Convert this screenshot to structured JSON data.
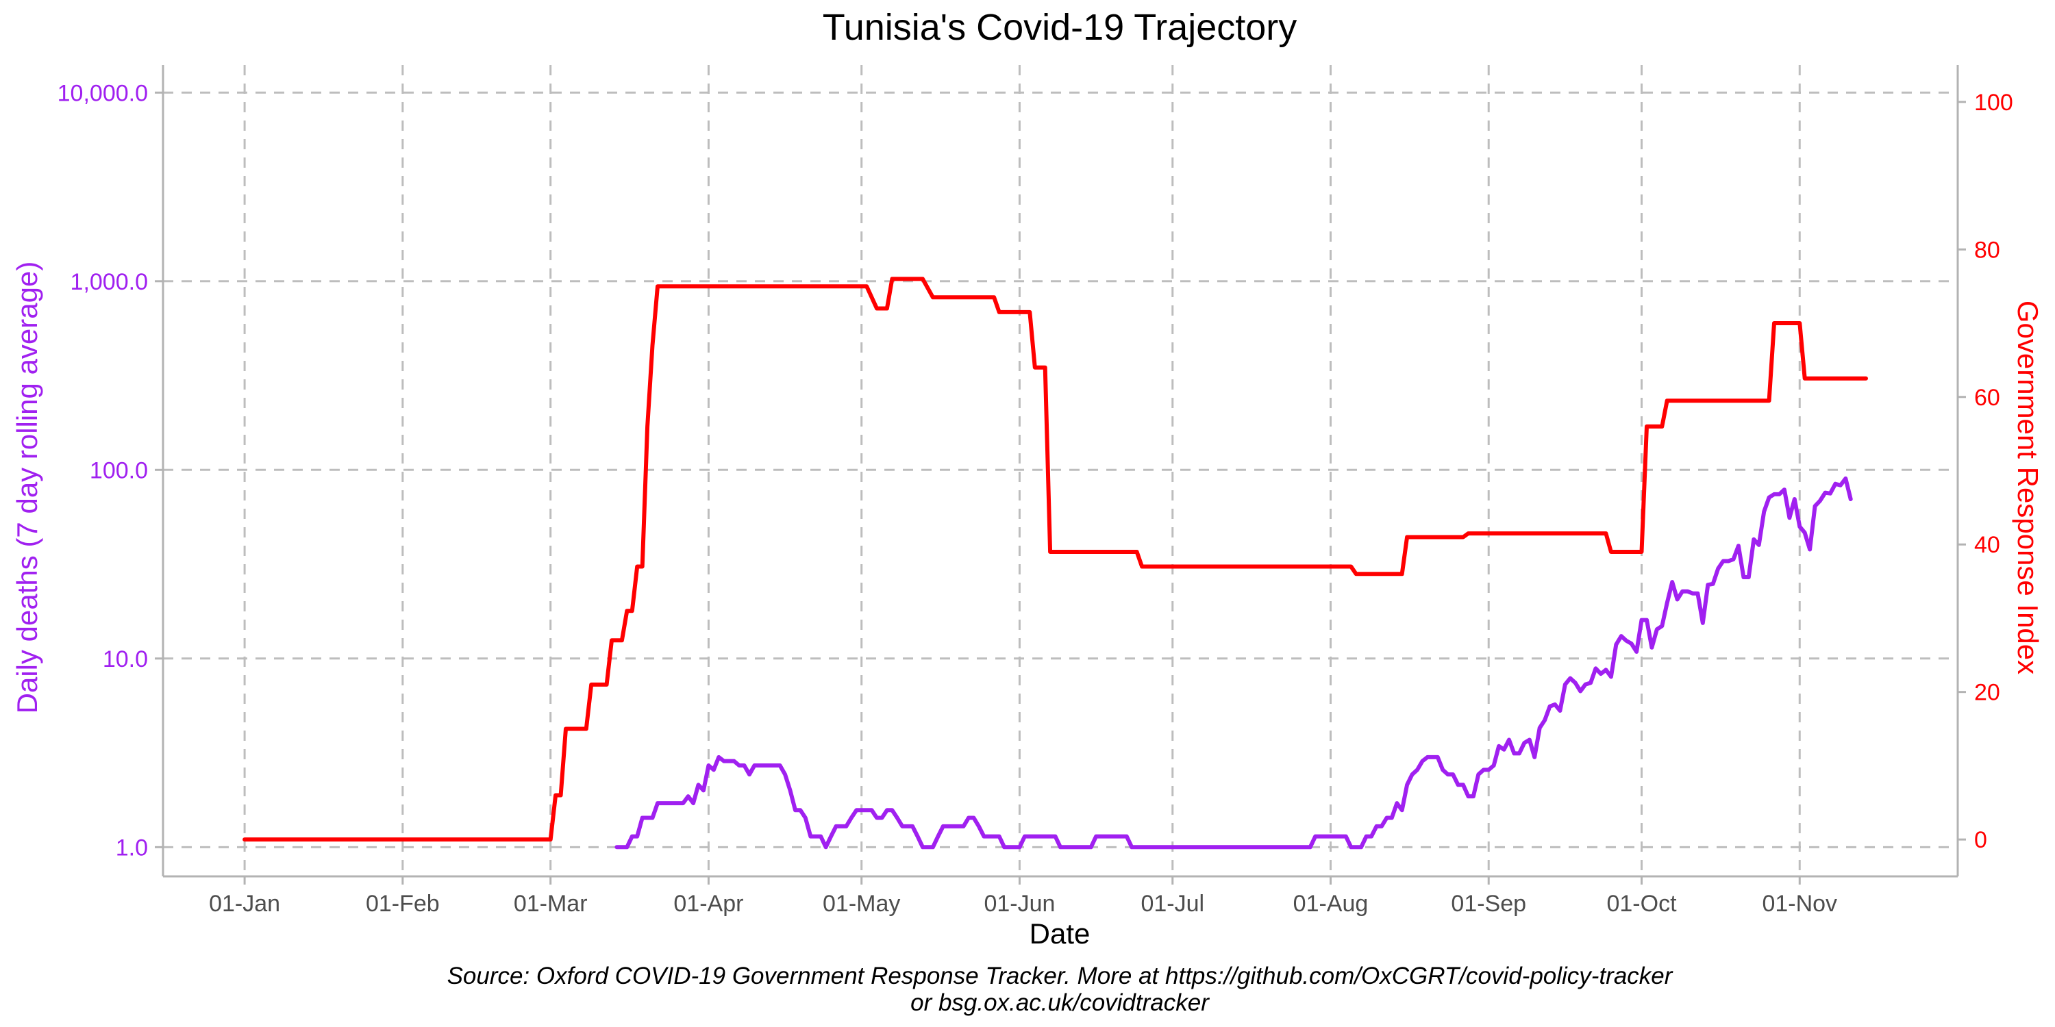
{
  "chart_data": {
    "type": "line",
    "title": "Tunisia's Covid-19 Trajectory",
    "xlabel": "Date",
    "ylabel_left": "Daily deaths (7 day rolling average)",
    "ylabel_right": "Government Response Index",
    "left_axis": {
      "scale": "log10",
      "range": [
        0.7,
        14000
      ],
      "ticks": [
        1,
        10,
        100,
        1000,
        10000
      ],
      "tick_labels": [
        "1.0",
        "10.0",
        "100.0",
        "1,000.0",
        "10,000.0"
      ],
      "color": "#a020f0"
    },
    "right_axis": {
      "scale": "linear",
      "range": [
        -5,
        105
      ],
      "ticks": [
        0,
        20,
        40,
        60,
        80,
        100
      ],
      "tick_labels": [
        "0",
        "20",
        "40",
        "60",
        "80",
        "100"
      ],
      "color": "#ff0000"
    },
    "x_axis": {
      "type": "date",
      "range": [
        "2019-12-16",
        "2020-12-02"
      ],
      "ticks": [
        "2020-01-01",
        "2020-02-01",
        "2020-03-01",
        "2020-04-01",
        "2020-05-01",
        "2020-06-01",
        "2020-07-01",
        "2020-08-01",
        "2020-09-01",
        "2020-10-01",
        "2020-11-01"
      ],
      "tick_labels": [
        "01-Jan",
        "01-Feb",
        "01-Mar",
        "01-Apr",
        "01-May",
        "01-Jun",
        "01-Jul",
        "01-Aug",
        "01-Sep",
        "01-Oct",
        "01-Nov"
      ]
    },
    "grid": true,
    "series": [
      {
        "name": "Government Response Index",
        "axis": "right",
        "color": "#ff0000",
        "points": [
          [
            "2020-01-01",
            0
          ],
          [
            "2020-03-01",
            0
          ],
          [
            "2020-03-02",
            6
          ],
          [
            "2020-03-03",
            6
          ],
          [
            "2020-03-04",
            15
          ],
          [
            "2020-03-08",
            15
          ],
          [
            "2020-03-09",
            21
          ],
          [
            "2020-03-12",
            21
          ],
          [
            "2020-03-13",
            27
          ],
          [
            "2020-03-15",
            27
          ],
          [
            "2020-03-16",
            31
          ],
          [
            "2020-03-17",
            31
          ],
          [
            "2020-03-18",
            37
          ],
          [
            "2020-03-19",
            37
          ],
          [
            "2020-03-20",
            56
          ],
          [
            "2020-03-21",
            67
          ],
          [
            "2020-03-22",
            75
          ],
          [
            "2020-05-02",
            75
          ],
          [
            "2020-05-04",
            72
          ],
          [
            "2020-05-06",
            72
          ],
          [
            "2020-05-07",
            76
          ],
          [
            "2020-05-13",
            76
          ],
          [
            "2020-05-15",
            73.5
          ],
          [
            "2020-05-27",
            73.5
          ],
          [
            "2020-05-28",
            71.5
          ],
          [
            "2020-06-03",
            71.5
          ],
          [
            "2020-06-04",
            64
          ],
          [
            "2020-06-06",
            64
          ],
          [
            "2020-06-07",
            39
          ],
          [
            "2020-06-24",
            39
          ],
          [
            "2020-06-25",
            37
          ],
          [
            "2020-08-05",
            37
          ],
          [
            "2020-08-06",
            36
          ],
          [
            "2020-08-15",
            36
          ],
          [
            "2020-08-16",
            41
          ],
          [
            "2020-08-27",
            41
          ],
          [
            "2020-08-28",
            41.5
          ],
          [
            "2020-09-24",
            41.5
          ],
          [
            "2020-09-25",
            39
          ],
          [
            "2020-10-01",
            39
          ],
          [
            "2020-10-02",
            56
          ],
          [
            "2020-10-05",
            56
          ],
          [
            "2020-10-06",
            59.5
          ],
          [
            "2020-10-26",
            59.5
          ],
          [
            "2020-10-27",
            70
          ],
          [
            "2020-11-01",
            70
          ],
          [
            "2020-11-02",
            62.5
          ],
          [
            "2020-11-14",
            62.5
          ]
        ]
      },
      {
        "name": "Daily deaths (7 day rolling average)",
        "axis": "left",
        "color": "#a020f0",
        "points": [
          [
            "2020-03-14",
            1.0
          ],
          [
            "2020-03-16",
            1.0
          ],
          [
            "2020-03-17",
            1.14
          ],
          [
            "2020-03-18",
            1.14
          ],
          [
            "2020-03-19",
            1.43
          ],
          [
            "2020-03-21",
            1.43
          ],
          [
            "2020-03-22",
            1.71
          ],
          [
            "2020-03-27",
            1.71
          ],
          [
            "2020-03-28",
            1.86
          ],
          [
            "2020-03-29",
            1.71
          ],
          [
            "2020-03-30",
            2.14
          ],
          [
            "2020-03-31",
            2.0
          ],
          [
            "2020-04-01",
            2.71
          ],
          [
            "2020-04-02",
            2.57
          ],
          [
            "2020-04-03",
            3.0
          ],
          [
            "2020-04-04",
            2.86
          ],
          [
            "2020-04-06",
            2.86
          ],
          [
            "2020-04-07",
            2.71
          ],
          [
            "2020-04-08",
            2.71
          ],
          [
            "2020-04-09",
            2.43
          ],
          [
            "2020-04-10",
            2.71
          ],
          [
            "2020-04-15",
            2.71
          ],
          [
            "2020-04-16",
            2.43
          ],
          [
            "2020-04-17",
            2.0
          ],
          [
            "2020-04-18",
            1.57
          ],
          [
            "2020-04-19",
            1.57
          ],
          [
            "2020-04-20",
            1.43
          ],
          [
            "2020-04-21",
            1.14
          ],
          [
            "2020-04-23",
            1.14
          ],
          [
            "2020-04-24",
            1.0
          ],
          [
            "2020-04-25",
            1.14
          ],
          [
            "2020-04-26",
            1.29
          ],
          [
            "2020-04-28",
            1.29
          ],
          [
            "2020-04-29",
            1.43
          ],
          [
            "2020-04-30",
            1.57
          ],
          [
            "2020-05-03",
            1.57
          ],
          [
            "2020-05-04",
            1.43
          ],
          [
            "2020-05-05",
            1.43
          ],
          [
            "2020-05-06",
            1.57
          ],
          [
            "2020-05-07",
            1.57
          ],
          [
            "2020-05-08",
            1.43
          ],
          [
            "2020-05-09",
            1.29
          ],
          [
            "2020-05-11",
            1.29
          ],
          [
            "2020-05-12",
            1.14
          ],
          [
            "2020-05-13",
            1.0
          ],
          [
            "2020-05-15",
            1.0
          ],
          [
            "2020-05-16",
            1.14
          ],
          [
            "2020-05-17",
            1.29
          ],
          [
            "2020-05-21",
            1.29
          ],
          [
            "2020-05-22",
            1.43
          ],
          [
            "2020-05-23",
            1.43
          ],
          [
            "2020-05-24",
            1.29
          ],
          [
            "2020-05-25",
            1.14
          ],
          [
            "2020-05-28",
            1.14
          ],
          [
            "2020-05-29",
            1.0
          ],
          [
            "2020-06-01",
            1.0
          ],
          [
            "2020-06-02",
            1.14
          ],
          [
            "2020-06-08",
            1.14
          ],
          [
            "2020-06-09",
            1.0
          ],
          [
            "2020-06-15",
            1.0
          ],
          [
            "2020-06-16",
            1.14
          ],
          [
            "2020-06-22",
            1.14
          ],
          [
            "2020-06-23",
            1.0
          ],
          [
            "2020-07-28",
            1.0
          ],
          [
            "2020-07-29",
            1.14
          ],
          [
            "2020-08-04",
            1.14
          ],
          [
            "2020-08-05",
            1.0
          ],
          [
            "2020-08-07",
            1.0
          ],
          [
            "2020-08-08",
            1.14
          ],
          [
            "2020-08-09",
            1.14
          ],
          [
            "2020-08-10",
            1.29
          ],
          [
            "2020-08-11",
            1.29
          ],
          [
            "2020-08-12",
            1.43
          ],
          [
            "2020-08-13",
            1.43
          ],
          [
            "2020-08-14",
            1.71
          ],
          [
            "2020-08-15",
            1.57
          ],
          [
            "2020-08-16",
            2.14
          ],
          [
            "2020-08-17",
            2.43
          ],
          [
            "2020-08-18",
            2.57
          ],
          [
            "2020-08-19",
            2.86
          ],
          [
            "2020-08-20",
            3.0
          ],
          [
            "2020-08-22",
            3.0
          ],
          [
            "2020-08-23",
            2.57
          ],
          [
            "2020-08-24",
            2.43
          ],
          [
            "2020-08-25",
            2.43
          ],
          [
            "2020-08-26",
            2.14
          ],
          [
            "2020-08-27",
            2.14
          ],
          [
            "2020-08-28",
            1.86
          ],
          [
            "2020-08-29",
            1.86
          ],
          [
            "2020-08-30",
            2.43
          ],
          [
            "2020-08-31",
            2.57
          ],
          [
            "2020-09-01",
            2.57
          ],
          [
            "2020-09-02",
            2.71
          ],
          [
            "2020-09-03",
            3.43
          ],
          [
            "2020-09-04",
            3.29
          ],
          [
            "2020-09-05",
            3.71
          ],
          [
            "2020-09-06",
            3.14
          ],
          [
            "2020-09-07",
            3.14
          ],
          [
            "2020-09-08",
            3.57
          ],
          [
            "2020-09-09",
            3.71
          ],
          [
            "2020-09-10",
            3.0
          ],
          [
            "2020-09-11",
            4.29
          ],
          [
            "2020-09-12",
            4.71
          ],
          [
            "2020-09-13",
            5.57
          ],
          [
            "2020-09-14",
            5.71
          ],
          [
            "2020-09-15",
            5.29
          ],
          [
            "2020-09-16",
            7.29
          ],
          [
            "2020-09-17",
            7.86
          ],
          [
            "2020-09-18",
            7.43
          ],
          [
            "2020-09-19",
            6.71
          ],
          [
            "2020-09-20",
            7.29
          ],
          [
            "2020-09-21",
            7.43
          ],
          [
            "2020-09-22",
            8.86
          ],
          [
            "2020-09-23",
            8.29
          ],
          [
            "2020-09-24",
            8.71
          ],
          [
            "2020-09-25",
            8.0
          ],
          [
            "2020-09-26",
            11.86
          ],
          [
            "2020-09-27",
            13.14
          ],
          [
            "2020-09-28",
            12.43
          ],
          [
            "2020-09-29",
            12.0
          ],
          [
            "2020-09-30",
            10.86
          ],
          [
            "2020-10-01",
            16.0
          ],
          [
            "2020-10-02",
            16.0
          ],
          [
            "2020-10-03",
            11.43
          ],
          [
            "2020-10-04",
            14.29
          ],
          [
            "2020-10-05",
            14.86
          ],
          [
            "2020-10-06",
            19.71
          ],
          [
            "2020-10-07",
            25.43
          ],
          [
            "2020-10-08",
            20.57
          ],
          [
            "2020-10-09",
            22.71
          ],
          [
            "2020-10-10",
            22.71
          ],
          [
            "2020-10-11",
            22.14
          ],
          [
            "2020-10-12",
            22.14
          ],
          [
            "2020-10-13",
            15.43
          ],
          [
            "2020-10-14",
            24.57
          ],
          [
            "2020-10-15",
            24.86
          ],
          [
            "2020-10-16",
            30.0
          ],
          [
            "2020-10-17",
            32.86
          ],
          [
            "2020-10-18",
            32.86
          ],
          [
            "2020-10-19",
            33.57
          ],
          [
            "2020-10-20",
            39.57
          ],
          [
            "2020-10-21",
            27.0
          ],
          [
            "2020-10-22",
            27.0
          ],
          [
            "2020-10-23",
            42.86
          ],
          [
            "2020-10-24",
            40.0
          ],
          [
            "2020-10-25",
            60.0
          ],
          [
            "2020-10-26",
            71.43
          ],
          [
            "2020-10-27",
            74.29
          ],
          [
            "2020-10-28",
            74.29
          ],
          [
            "2020-10-29",
            78.57
          ],
          [
            "2020-10-30",
            55.71
          ],
          [
            "2020-10-31",
            70.0
          ],
          [
            "2020-11-01",
            50.0
          ],
          [
            "2020-11-02",
            46.43
          ],
          [
            "2020-11-03",
            37.86
          ],
          [
            "2020-11-04",
            64.29
          ],
          [
            "2020-11-05",
            68.57
          ],
          [
            "2020-11-06",
            75.71
          ],
          [
            "2020-11-07",
            75.0
          ],
          [
            "2020-11-08",
            84.29
          ],
          [
            "2020-11-09",
            82.86
          ],
          [
            "2020-11-10",
            90.0
          ],
          [
            "2020-11-11",
            70.0
          ]
        ]
      }
    ],
    "source_line1": "Source: Oxford COVID-19 Government Response Tracker. More at https://github.com/OxCGRT/covid-policy-tracker",
    "source_line2": "or bsg.ox.ac.uk/covidtracker"
  }
}
